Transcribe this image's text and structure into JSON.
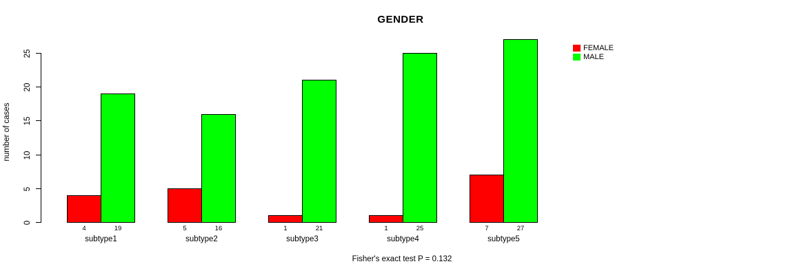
{
  "chart_data": {
    "type": "bar",
    "title": "GENDER",
    "xlabel": "",
    "ylabel": "number of cases",
    "categories": [
      "subtype1",
      "subtype2",
      "subtype3",
      "subtype4",
      "subtype5"
    ],
    "series": [
      {
        "name": "FEMALE",
        "color": "#FF0000",
        "values": [
          4,
          5,
          1,
          1,
          7
        ]
      },
      {
        "name": "MALE",
        "color": "#00FF00",
        "values": [
          19,
          16,
          21,
          25,
          27
        ]
      }
    ],
    "yticks": [
      0,
      5,
      10,
      15,
      20,
      25
    ],
    "ylim": [
      0,
      27
    ],
    "grid": false,
    "bar_border_color": "#000000",
    "show_bar_value_labels": true,
    "legend_position": "top-right",
    "legend_entries": [
      "FEMALE",
      "MALE"
    ],
    "footnote": "Fisher's exact test P = 0.132"
  }
}
